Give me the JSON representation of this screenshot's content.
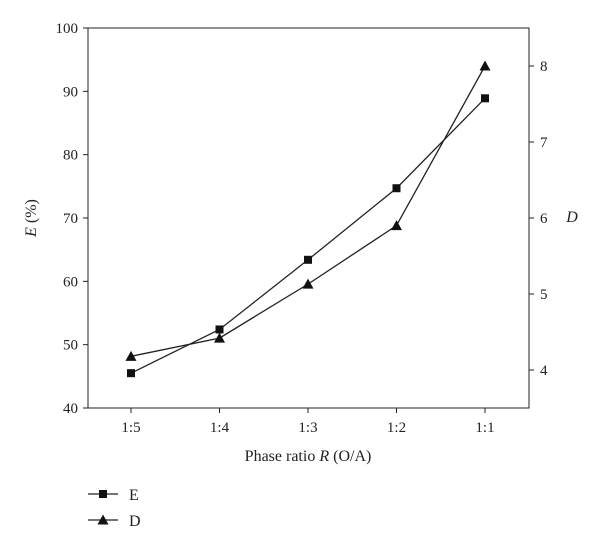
{
  "chart_data": {
    "type": "line",
    "categories": [
      "1:5",
      "1:4",
      "1:3",
      "1:2",
      "1:1"
    ],
    "xlabel": {
      "prefix": "Phase ratio ",
      "italic": "R",
      "suffix": " (O/A)"
    },
    "y_left": {
      "label_italic": "E",
      "label_rest": " (%)",
      "ylim": [
        40,
        100
      ],
      "ticks": [
        40,
        50,
        60,
        70,
        80,
        90,
        100
      ]
    },
    "y_right": {
      "label_italic": "D",
      "ylim": [
        3.5,
        8.5
      ],
      "ticks": [
        4,
        5,
        6,
        7,
        8
      ]
    },
    "series": [
      {
        "name": "E",
        "axis": "left",
        "marker": "square",
        "values": [
          45.5,
          52.4,
          63.4,
          74.7,
          88.9
        ]
      },
      {
        "name": "D",
        "axis": "right",
        "marker": "triangle",
        "values": [
          4.18,
          4.42,
          5.13,
          5.9,
          8.0
        ]
      }
    ],
    "legend": "bottom-left",
    "grid": false,
    "colors": {
      "line": "#222222",
      "marker": "#111111"
    }
  }
}
